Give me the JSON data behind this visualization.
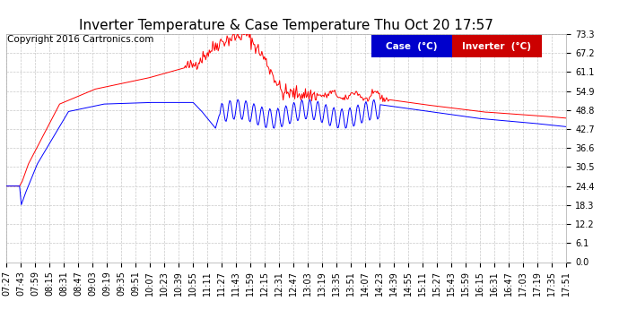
{
  "title": "Inverter Temperature & Case Temperature Thu Oct 20 17:57",
  "copyright": "Copyright 2016 Cartronics.com",
  "background_color": "#ffffff",
  "plot_bg_color": "#ffffff",
  "grid_color": "#c8c8c8",
  "y_ticks": [
    0.0,
    6.1,
    12.2,
    18.3,
    24.4,
    30.5,
    36.6,
    42.7,
    48.8,
    54.9,
    61.1,
    67.2,
    73.3
  ],
  "ylim": [
    0.0,
    73.3
  ],
  "x_labels": [
    "07:27",
    "07:43",
    "07:59",
    "08:15",
    "08:31",
    "08:47",
    "09:03",
    "09:19",
    "09:35",
    "09:51",
    "10:07",
    "10:23",
    "10:39",
    "10:55",
    "11:11",
    "11:27",
    "11:43",
    "11:59",
    "12:15",
    "12:31",
    "12:47",
    "13:03",
    "13:19",
    "13:35",
    "13:51",
    "14:07",
    "14:23",
    "14:39",
    "14:55",
    "15:11",
    "15:27",
    "15:43",
    "15:59",
    "16:15",
    "16:31",
    "16:47",
    "17:03",
    "17:19",
    "17:35",
    "17:51"
  ],
  "case_color": "#0000ff",
  "inverter_color": "#ff0000",
  "legend_case_bg": "#0000cc",
  "legend_inverter_bg": "#cc0000",
  "legend_text_color": "#ffffff",
  "title_fontsize": 11,
  "axis_fontsize": 7,
  "copyright_fontsize": 7.5
}
